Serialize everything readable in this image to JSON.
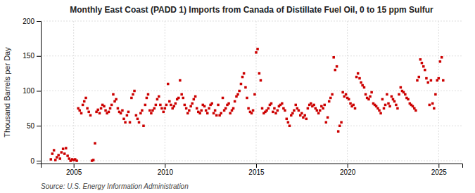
{
  "chart_data": {
    "type": "scatter",
    "title": "Monthly East Coast (PADD 1) Imports from Canada of Distillate Fuel Oil, 0 to 15 ppm Sulfur",
    "y_label": "Thousand Barrels per Day",
    "annotations": [
      "Source: U.S. Energy Information Administration"
    ],
    "color": "#cc0000",
    "marker": "square",
    "grid": true,
    "xlim": [
      2003.2,
      2026.3
    ],
    "xticks": [
      2005,
      2010,
      2015,
      2020,
      2025
    ],
    "ylim": [
      -4,
      200
    ],
    "yticks": [
      0,
      50,
      100,
      150,
      200
    ],
    "x": [
      2003.75,
      2003.83,
      2003.92,
      2004.0,
      2004.08,
      2004.17,
      2004.25,
      2004.33,
      2004.42,
      2004.5,
      2004.58,
      2004.67,
      2004.75,
      2004.83,
      2004.92,
      2005.0,
      2005.08,
      2005.17,
      2005.25,
      2005.33,
      2005.42,
      2005.5,
      2005.58,
      2005.67,
      2005.75,
      2005.83,
      2005.92,
      2006.0,
      2006.08,
      2006.17,
      2006.25,
      2006.33,
      2006.42,
      2006.5,
      2006.58,
      2006.67,
      2006.75,
      2006.83,
      2006.92,
      2007.0,
      2007.08,
      2007.17,
      2007.25,
      2007.33,
      2007.42,
      2007.5,
      2007.58,
      2007.67,
      2007.75,
      2007.83,
      2007.92,
      2008.0,
      2008.08,
      2008.17,
      2008.25,
      2008.33,
      2008.42,
      2008.5,
      2008.58,
      2008.67,
      2008.75,
      2008.83,
      2008.92,
      2009.0,
      2009.08,
      2009.17,
      2009.25,
      2009.33,
      2009.42,
      2009.5,
      2009.58,
      2009.67,
      2009.75,
      2009.83,
      2009.92,
      2010.0,
      2010.08,
      2010.17,
      2010.25,
      2010.33,
      2010.42,
      2010.5,
      2010.58,
      2010.67,
      2010.75,
      2010.83,
      2010.92,
      2011.0,
      2011.08,
      2011.17,
      2011.25,
      2011.33,
      2011.42,
      2011.5,
      2011.58,
      2011.67,
      2011.75,
      2011.83,
      2011.92,
      2012.0,
      2012.08,
      2012.17,
      2012.25,
      2012.33,
      2012.42,
      2012.5,
      2012.58,
      2012.67,
      2012.75,
      2012.83,
      2012.92,
      2013.0,
      2013.08,
      2013.17,
      2013.25,
      2013.33,
      2013.42,
      2013.5,
      2013.58,
      2013.67,
      2013.75,
      2013.83,
      2013.92,
      2014.0,
      2014.08,
      2014.17,
      2014.25,
      2014.33,
      2014.42,
      2014.5,
      2014.58,
      2014.67,
      2014.75,
      2014.83,
      2014.92,
      2015.0,
      2015.08,
      2015.17,
      2015.25,
      2015.33,
      2015.42,
      2015.5,
      2015.58,
      2015.67,
      2015.75,
      2015.83,
      2015.92,
      2016.0,
      2016.08,
      2016.17,
      2016.25,
      2016.33,
      2016.42,
      2016.5,
      2016.58,
      2016.67,
      2016.75,
      2016.83,
      2016.92,
      2017.0,
      2017.08,
      2017.17,
      2017.25,
      2017.33,
      2017.42,
      2017.5,
      2017.58,
      2017.67,
      2017.75,
      2017.83,
      2017.92,
      2018.0,
      2018.08,
      2018.17,
      2018.25,
      2018.33,
      2018.42,
      2018.5,
      2018.58,
      2018.67,
      2018.75,
      2018.83,
      2018.92,
      2019.0,
      2019.08,
      2019.17,
      2019.25,
      2019.33,
      2019.42,
      2019.5,
      2019.58,
      2019.67,
      2019.75,
      2019.83,
      2019.92,
      2020.0,
      2020.08,
      2020.17,
      2020.25,
      2020.33,
      2020.42,
      2020.5,
      2020.58,
      2020.67,
      2020.75,
      2020.83,
      2020.92,
      2021.0,
      2021.08,
      2021.17,
      2021.25,
      2021.33,
      2021.42,
      2021.5,
      2021.58,
      2021.67,
      2021.75,
      2021.83,
      2021.92,
      2022.0,
      2022.08,
      2022.17,
      2022.25,
      2022.33,
      2022.42,
      2022.5,
      2022.58,
      2022.67,
      2022.75,
      2022.83,
      2022.92,
      2023.0,
      2023.08,
      2023.17,
      2023.25,
      2023.33,
      2023.42,
      2023.5,
      2023.58,
      2023.67,
      2023.75,
      2023.83,
      2023.92,
      2024.0,
      2024.08,
      2024.17,
      2024.25,
      2024.33,
      2024.42,
      2024.5,
      2024.58,
      2024.67,
      2024.75,
      2024.83,
      2024.92,
      2025.0,
      2025.08,
      2025.17,
      2025.25
    ],
    "values": [
      2,
      10,
      15,
      1,
      5,
      8,
      3,
      12,
      17,
      10,
      18,
      7,
      3,
      0,
      2,
      1,
      2,
      0,
      75,
      72,
      68,
      80,
      85,
      90,
      75,
      70,
      65,
      0,
      1,
      25,
      70,
      73,
      68,
      75,
      80,
      78,
      72,
      68,
      70,
      75,
      80,
      95,
      85,
      88,
      75,
      70,
      68,
      72,
      60,
      55,
      65,
      70,
      55,
      90,
      95,
      100,
      65,
      60,
      55,
      68,
      72,
      50,
      80,
      90,
      95,
      72,
      68,
      72,
      75,
      80,
      88,
      92,
      80,
      75,
      70,
      75,
      80,
      110,
      85,
      80,
      75,
      78,
      82,
      88,
      90,
      115,
      95,
      90,
      80,
      75,
      68,
      72,
      78,
      82,
      88,
      92,
      75,
      70,
      68,
      72,
      80,
      78,
      72,
      68,
      75,
      80,
      82,
      68,
      72,
      65,
      80,
      65,
      68,
      90,
      72,
      75,
      80,
      82,
      68,
      72,
      75,
      85,
      92,
      95,
      100,
      110,
      120,
      125,
      105,
      90,
      75,
      70,
      68,
      72,
      95,
      155,
      160,
      125,
      115,
      75,
      68,
      70,
      72,
      75,
      80,
      82,
      70,
      75,
      68,
      72,
      78,
      80,
      82,
      75,
      72,
      60,
      55,
      50,
      65,
      68,
      72,
      80,
      75,
      72,
      65,
      68,
      62,
      65,
      60,
      75,
      80,
      82,
      78,
      80,
      75,
      72,
      68,
      72,
      78,
      75,
      80,
      55,
      62,
      85,
      90,
      95,
      148,
      130,
      135,
      42,
      50,
      55,
      98,
      92,
      95,
      90,
      88,
      82,
      78,
      80,
      75,
      120,
      125,
      118,
      112,
      108,
      105,
      95,
      90,
      88,
      92,
      98,
      82,
      80,
      78,
      75,
      72,
      68,
      88,
      75,
      80,
      95,
      82,
      78,
      92,
      88,
      85,
      80,
      75,
      95,
      105,
      100,
      98,
      95,
      90,
      88,
      82,
      80,
      78,
      75,
      72,
      115,
      120,
      145,
      140,
      135,
      130,
      118,
      112,
      80,
      115,
      82,
      75,
      95,
      115,
      118,
      142,
      148,
      115
    ]
  }
}
